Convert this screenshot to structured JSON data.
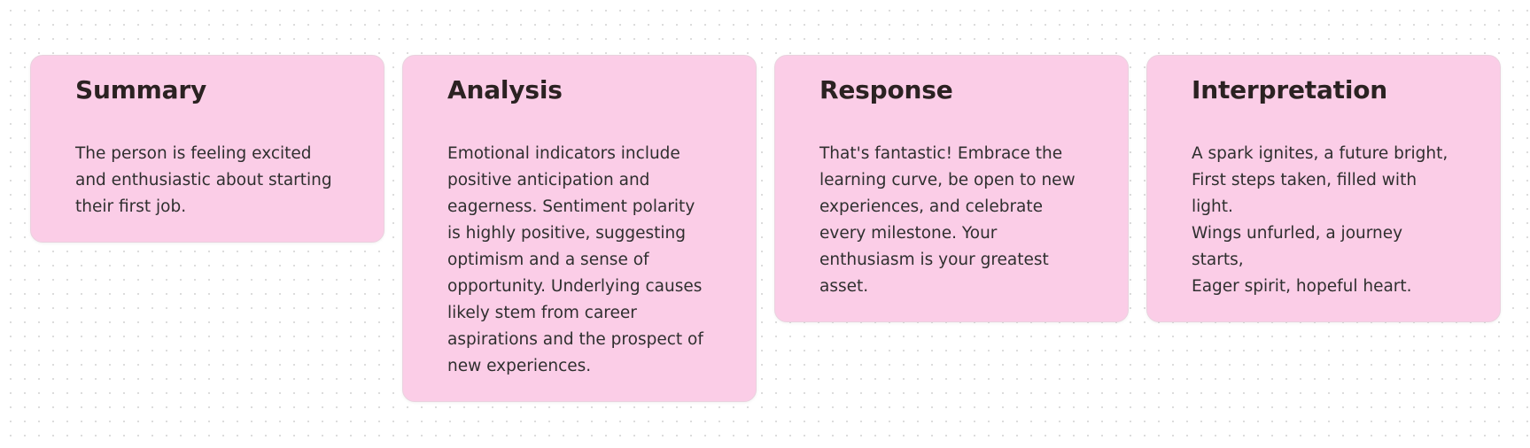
{
  "cards": [
    {
      "title": "Summary",
      "body": "The person is feeling excited and enthusiastic about starting their first job."
    },
    {
      "title": "Analysis",
      "body": "Emotional indicators include positive anticipation and eagerness. Sentiment polarity is highly positive, suggesting optimism and a sense of opportunity. Underlying causes likely stem from career aspirations and the prospect of new experiences."
    },
    {
      "title": "Response",
      "body": "That's fantastic! Embrace the learning curve, be open to new experiences, and celebrate every milestone. Your enthusiasm is your greatest asset."
    },
    {
      "title": "Interpretation",
      "body": "A spark ignites, a future bright,\nFirst steps taken, filled with light.\nWings unfurled, a journey starts,\nEager spirit, hopeful heart."
    }
  ],
  "colors": {
    "card_background": "#fbcde7",
    "card_border": "#ead1de",
    "title_text": "#2b2222",
    "body_text": "#2f2f2f",
    "page_background": "#ffffff"
  }
}
